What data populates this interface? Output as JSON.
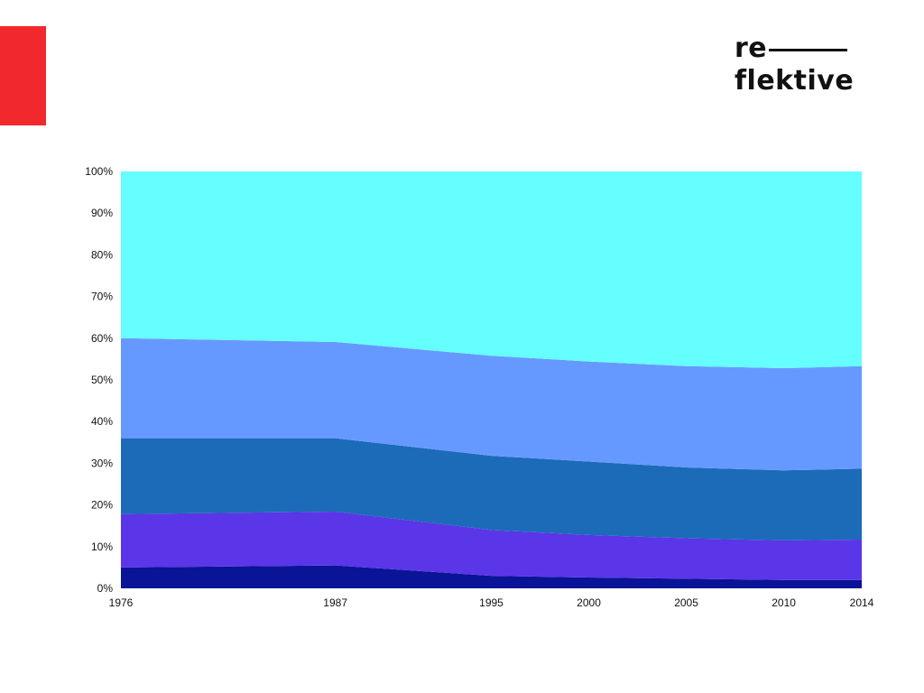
{
  "colors": {
    "accent": "#f2292c"
  },
  "logo": {
    "line1": "re",
    "line2": "flektive"
  },
  "chart_data": {
    "type": "area",
    "stacked": true,
    "normalized": true,
    "title": "",
    "xlabel": "",
    "ylabel": "",
    "x": [
      "1976",
      "1987",
      "1995",
      "2000",
      "2005",
      "2010",
      "2014"
    ],
    "y_ticks": [
      "0%",
      "10%",
      "20%",
      "30%",
      "40%",
      "50%",
      "60%",
      "70%",
      "80%",
      "90%",
      "100%"
    ],
    "ylim": [
      0,
      100
    ],
    "grid": false,
    "legend": "none",
    "series": [
      {
        "color": "#0a1496",
        "values": [
          5,
          5.5,
          3,
          2.6,
          2.3,
          2,
          2
        ]
      },
      {
        "color": "#5b35e8",
        "values": [
          12.8,
          12.9,
          11,
          10.2,
          9.7,
          9.5,
          9.7
        ]
      },
      {
        "color": "#1c6bb8",
        "values": [
          18.2,
          17.6,
          17.8,
          17.6,
          17,
          16.8,
          17
        ]
      },
      {
        "color": "#6699ff",
        "values": [
          24,
          23.1,
          24,
          24,
          24.3,
          24.5,
          24.6
        ]
      },
      {
        "color": "#66ffff",
        "values": [
          40,
          40.9,
          44.2,
          45.6,
          46.7,
          47.2,
          46.7
        ]
      }
    ]
  }
}
